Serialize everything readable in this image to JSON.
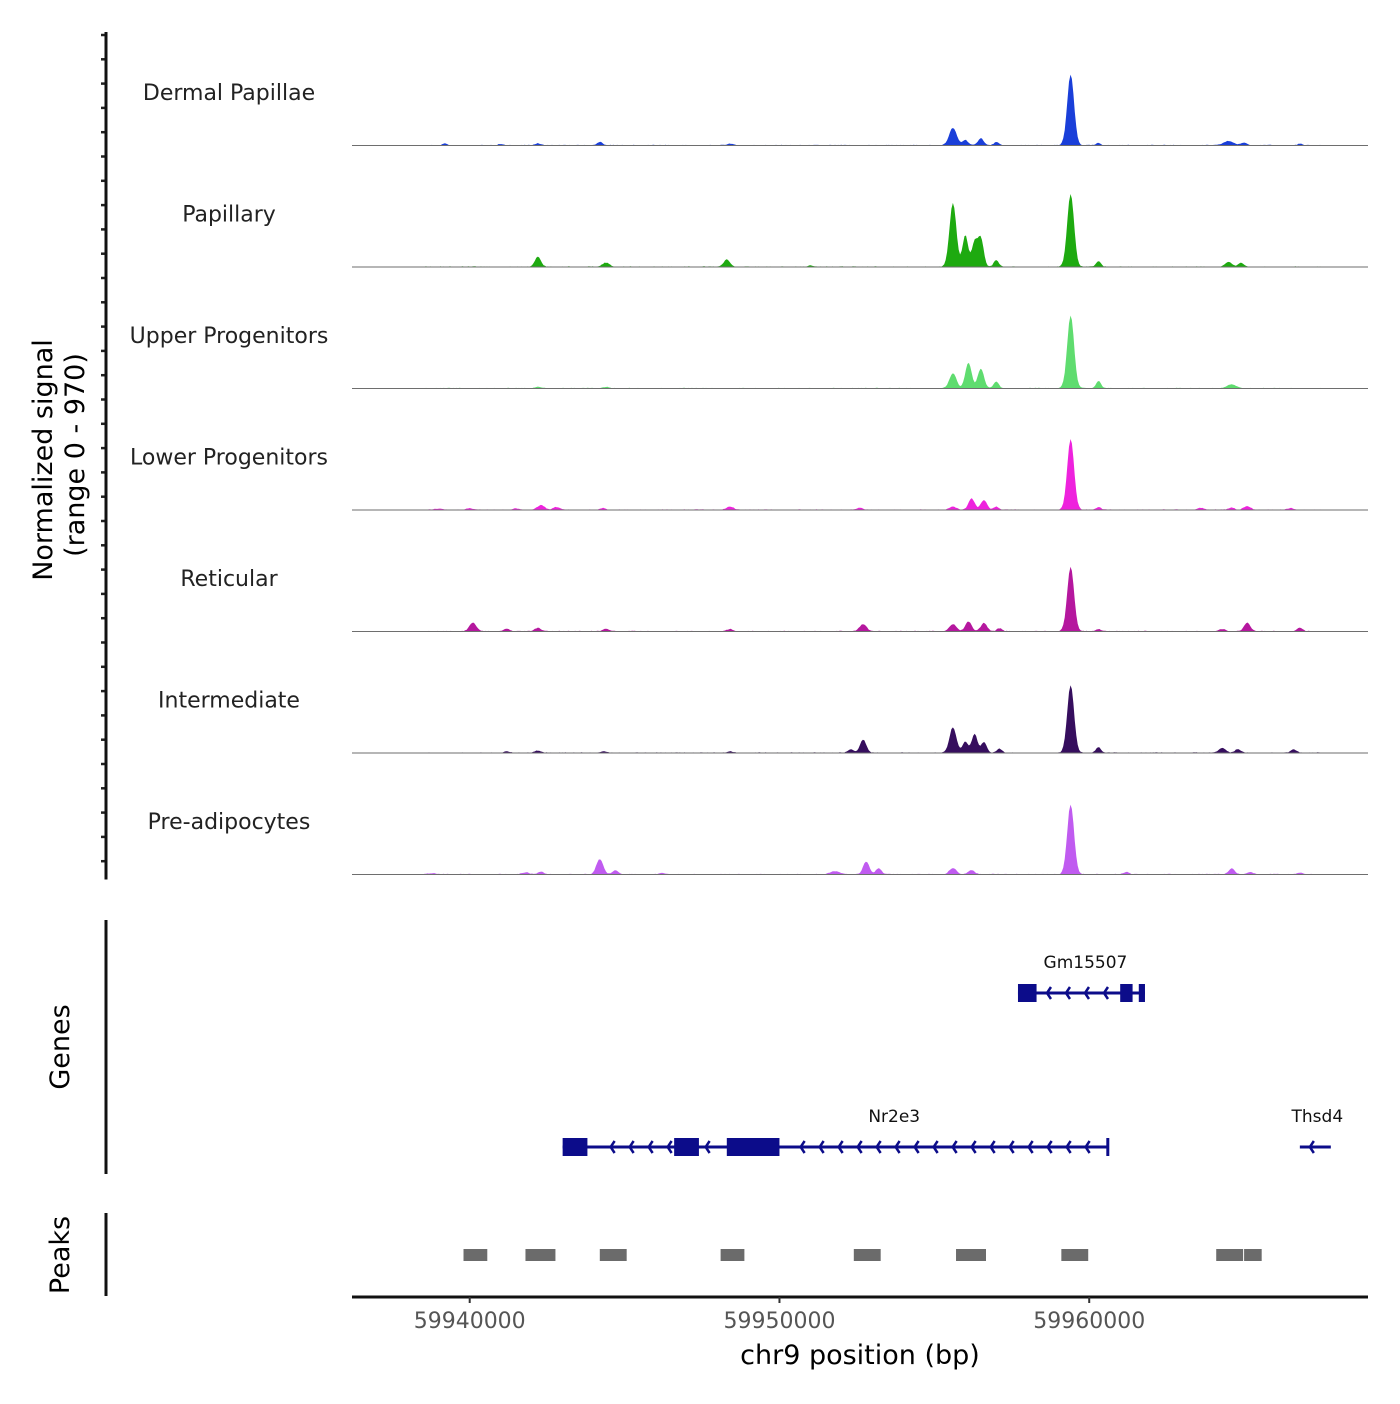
{
  "chart_data": {
    "type": "area",
    "title": "",
    "chromosome": "chr9",
    "xlabel": "chr9 position (bp)",
    "ylabel_line1": "Normalized signal",
    "ylabel_line2": "(range 0 - 970)",
    "genes_label": "Genes",
    "peaks_label": "Peaks",
    "xlim": [
      59936200,
      59969000
    ],
    "ylim": [
      0,
      970
    ],
    "x_ticks": [
      {
        "value": 59940000,
        "label": "59940000"
      },
      {
        "value": 59950000,
        "label": "59950000"
      },
      {
        "value": 59960000,
        "label": "59960000"
      }
    ],
    "series": [
      {
        "name": "Dermal Papillae",
        "color": "#1a3fd9",
        "peaks": [
          [
            59939200,
            30,
            60
          ],
          [
            59941000,
            18,
            70
          ],
          [
            59942200,
            25,
            90
          ],
          [
            59944200,
            45,
            80
          ],
          [
            59948400,
            22,
            90
          ],
          [
            59955600,
            230,
            120
          ],
          [
            59956000,
            70,
            90
          ],
          [
            59956500,
            95,
            90
          ],
          [
            59957000,
            40,
            80
          ],
          [
            59959400,
            940,
            110
          ],
          [
            59960300,
            30,
            70
          ],
          [
            59964500,
            55,
            160
          ],
          [
            59965000,
            35,
            90
          ],
          [
            59966800,
            20,
            70
          ]
        ]
      },
      {
        "name": "Papillary",
        "color": "#1eaa10",
        "peaks": [
          [
            59942200,
            130,
            100
          ],
          [
            59944400,
            55,
            110
          ],
          [
            59948300,
            95,
            100
          ],
          [
            59951000,
            15,
            100
          ],
          [
            59955600,
            850,
            110
          ],
          [
            59956000,
            420,
            90
          ],
          [
            59956300,
            330,
            90
          ],
          [
            59956500,
            380,
            90
          ],
          [
            59957000,
            90,
            80
          ],
          [
            59959400,
            970,
            110
          ],
          [
            59960300,
            70,
            80
          ],
          [
            59964500,
            60,
            110
          ],
          [
            59964900,
            55,
            80
          ]
        ]
      },
      {
        "name": "Upper Progenitors",
        "color": "#5fdc6f",
        "peaks": [
          [
            59942200,
            18,
            90
          ],
          [
            59944400,
            20,
            90
          ],
          [
            59955600,
            200,
            110
          ],
          [
            59956100,
            340,
            100
          ],
          [
            59956500,
            260,
            100
          ],
          [
            59957000,
            90,
            80
          ],
          [
            59959400,
            970,
            110
          ],
          [
            59960300,
            95,
            80
          ],
          [
            59964600,
            55,
            130
          ]
        ]
      },
      {
        "name": "Lower Progenitors",
        "color": "#ee22dd",
        "peaks": [
          [
            59939000,
            12,
            120
          ],
          [
            59940000,
            20,
            90
          ],
          [
            59941500,
            18,
            90
          ],
          [
            59942300,
            60,
            120
          ],
          [
            59942800,
            35,
            100
          ],
          [
            59944300,
            22,
            90
          ],
          [
            59948400,
            40,
            120
          ],
          [
            59952600,
            28,
            90
          ],
          [
            59955600,
            40,
            110
          ],
          [
            59956200,
            150,
            100
          ],
          [
            59956600,
            130,
            100
          ],
          [
            59957000,
            40,
            80
          ],
          [
            59959400,
            940,
            110
          ],
          [
            59960300,
            35,
            80
          ],
          [
            59963600,
            25,
            90
          ],
          [
            59964600,
            30,
            90
          ],
          [
            59965100,
            45,
            110
          ],
          [
            59966500,
            25,
            90
          ]
        ]
      },
      {
        "name": "Reticular",
        "color": "#b5179e",
        "peaks": [
          [
            59940100,
            115,
            110
          ],
          [
            59941200,
            30,
            90
          ],
          [
            59942200,
            45,
            100
          ],
          [
            59944400,
            30,
            90
          ],
          [
            59948400,
            30,
            90
          ],
          [
            59952700,
            95,
            110
          ],
          [
            59955600,
            95,
            110
          ],
          [
            59956100,
            130,
            100
          ],
          [
            59956600,
            110,
            100
          ],
          [
            59957100,
            40,
            80
          ],
          [
            59959400,
            860,
            110
          ],
          [
            59960300,
            30,
            80
          ],
          [
            59964300,
            30,
            100
          ],
          [
            59965100,
            115,
            100
          ],
          [
            59966800,
            45,
            90
          ]
        ]
      },
      {
        "name": "Intermediate",
        "color": "#360e5e",
        "peaks": [
          [
            59941200,
            20,
            90
          ],
          [
            59942200,
            30,
            90
          ],
          [
            59944300,
            18,
            90
          ],
          [
            59948400,
            20,
            90
          ],
          [
            59952300,
            45,
            90
          ],
          [
            59952700,
            175,
            100
          ],
          [
            59955600,
            340,
            110
          ],
          [
            59956000,
            150,
            90
          ],
          [
            59956300,
            250,
            90
          ],
          [
            59956600,
            140,
            90
          ],
          [
            59957100,
            55,
            80
          ],
          [
            59959400,
            900,
            110
          ],
          [
            59960300,
            75,
            80
          ],
          [
            59964300,
            65,
            110
          ],
          [
            59964800,
            50,
            90
          ],
          [
            59966600,
            45,
            90
          ]
        ]
      },
      {
        "name": "Pre-adipocytes",
        "color": "#c05bf0",
        "peaks": [
          [
            59938800,
            12,
            150
          ],
          [
            59941800,
            25,
            110
          ],
          [
            59942300,
            35,
            90
          ],
          [
            59944200,
            200,
            110
          ],
          [
            59944700,
            50,
            90
          ],
          [
            59946200,
            15,
            100
          ],
          [
            59951800,
            40,
            150
          ],
          [
            59952800,
            170,
            100
          ],
          [
            59953200,
            80,
            90
          ],
          [
            59955600,
            85,
            110
          ],
          [
            59956200,
            55,
            100
          ],
          [
            59959400,
            930,
            110
          ],
          [
            59961200,
            30,
            90
          ],
          [
            59964600,
            75,
            100
          ],
          [
            59965200,
            30,
            90
          ],
          [
            59966800,
            20,
            90
          ]
        ]
      }
    ],
    "genes": [
      {
        "name": "Gm15507",
        "row": 0,
        "strand": "-",
        "start": 59957700,
        "end": 59961800,
        "exons": [
          [
            59957700,
            59958300
          ],
          [
            59961000,
            59961400
          ],
          [
            59961600,
            59961800
          ]
        ]
      },
      {
        "name": "Nr2e3",
        "row": 1,
        "strand": "-",
        "start": 59943000,
        "end": 59960600,
        "exons": [
          [
            59943000,
            59943800
          ],
          [
            59946600,
            59947400
          ],
          [
            59948300,
            59950000
          ]
        ]
      },
      {
        "name": "Thsd4",
        "row": 1,
        "strand": "-",
        "start": 59966800,
        "end": 59967800,
        "exons": []
      }
    ],
    "peaks_regions": [
      [
        59939800,
        59940600
      ],
      [
        59941800,
        59942800
      ],
      [
        59944200,
        59945100
      ],
      [
        59948100,
        59948900
      ],
      [
        59952400,
        59953300
      ],
      [
        59955700,
        59956700
      ],
      [
        59959100,
        59960000
      ],
      [
        59964100,
        59965000
      ],
      [
        59965000,
        59965600
      ]
    ]
  }
}
